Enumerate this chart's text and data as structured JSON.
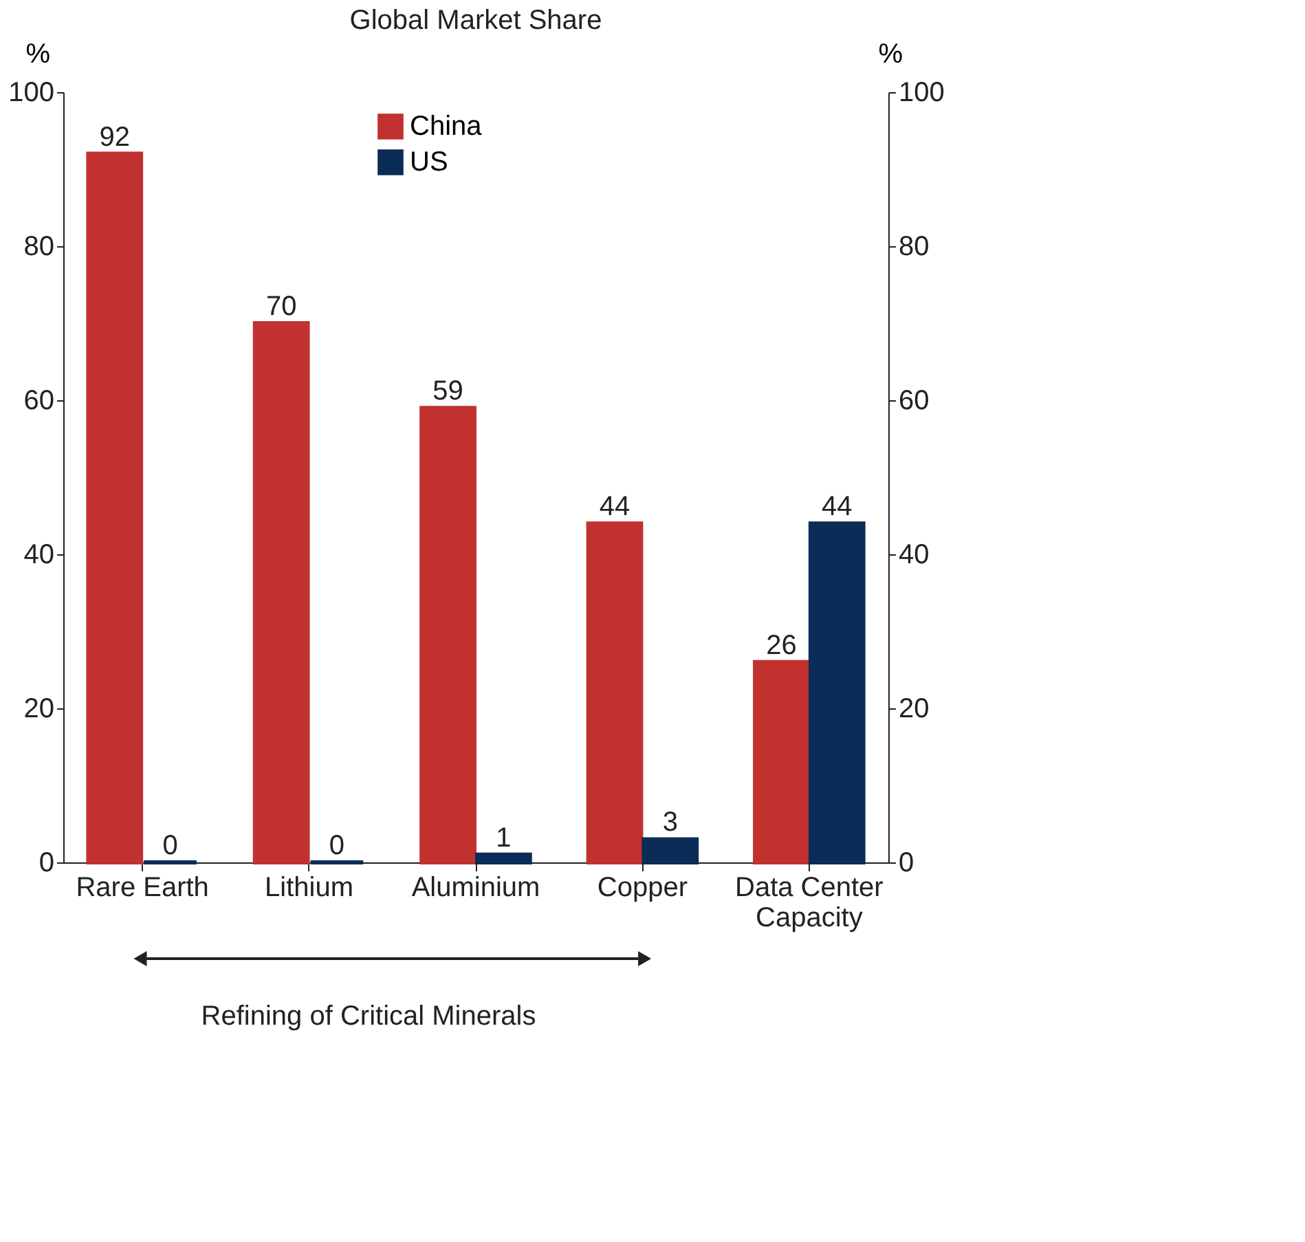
{
  "chart_data": {
    "type": "bar",
    "title": "Global Market Share",
    "ylabel": "%",
    "y2label": "%",
    "categories": [
      "Rare Earth",
      "Lithium",
      "Aluminium",
      "Copper",
      "Data Center\nCapacity"
    ],
    "series": [
      {
        "name": "China",
        "color": "#c1312f",
        "values": [
          92,
          70,
          59,
          44,
          26
        ]
      },
      {
        "name": "US",
        "color": "#0b2c56",
        "values": [
          0,
          0,
          1,
          3,
          44
        ]
      }
    ],
    "ylim": [
      0,
      100
    ],
    "yticks": [
      0,
      20,
      40,
      60,
      80,
      100
    ],
    "y2lim": [
      0,
      100
    ],
    "y2ticks": [
      0,
      20,
      40,
      60,
      80,
      100
    ],
    "data_labels": true,
    "legend": "top",
    "grid": false,
    "annotations": [
      "Refining of Critical Minerals"
    ]
  }
}
